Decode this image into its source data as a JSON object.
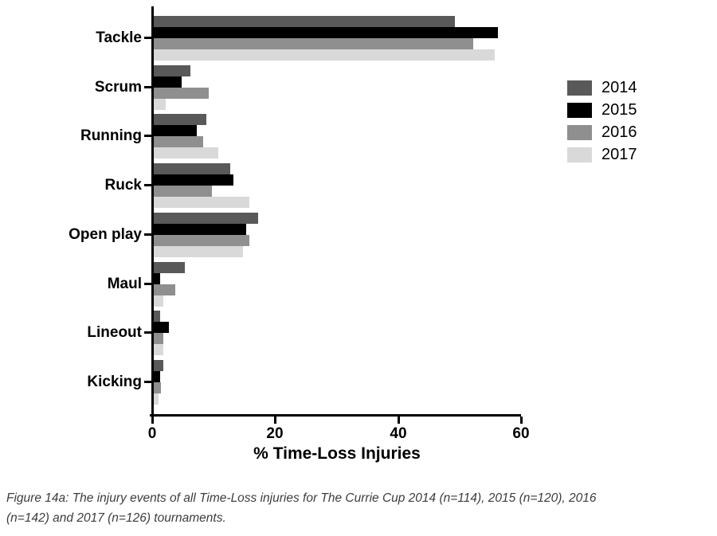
{
  "chart_data": {
    "type": "bar",
    "orientation": "horizontal",
    "title": "",
    "xlabel": "% Time-Loss Injuries",
    "ylabel": "",
    "xlim": [
      0,
      60
    ],
    "xticks": [
      0,
      20,
      40,
      60
    ],
    "grid": false,
    "legend_position": "right",
    "categories": [
      "Tackle",
      "Scrum",
      "Running",
      "Ruck",
      "Open play",
      "Maul",
      "Lineout",
      "Kicking"
    ],
    "series": [
      {
        "name": "2014",
        "color": "#595959",
        "values": [
          49,
          6,
          8.5,
          12.5,
          17,
          5,
          1,
          1.5
        ]
      },
      {
        "name": "2015",
        "color": "#000000",
        "values": [
          56,
          4.5,
          7,
          13,
          15,
          1,
          2.5,
          1
        ]
      },
      {
        "name": "2016",
        "color": "#8f8f8f",
        "values": [
          52,
          9,
          8,
          9.5,
          15.5,
          3.5,
          1.5,
          1.2
        ]
      },
      {
        "name": "2017",
        "color": "#d9d9d9",
        "values": [
          55.5,
          2,
          10.5,
          15.5,
          14.5,
          1.5,
          1.5,
          0.8
        ]
      }
    ]
  },
  "caption": {
    "line1": "Figure 14a: The injury events of all Time-Loss injuries for The Currie Cup 2014 (n=114), 2015 (n=120), 2016",
    "line2": "(n=142) and 2017 (n=126)  tournaments."
  }
}
